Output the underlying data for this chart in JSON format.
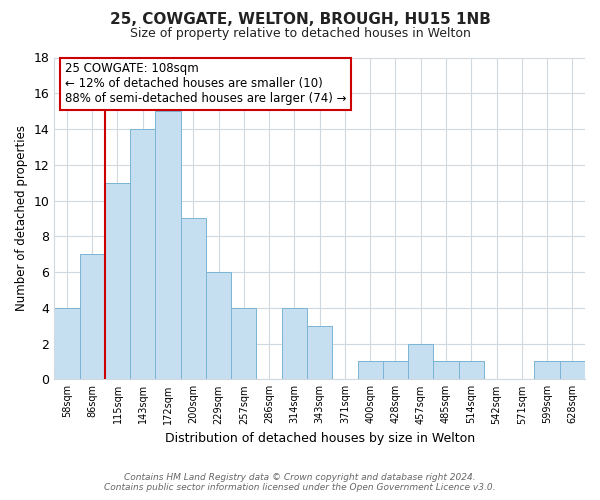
{
  "title": "25, COWGATE, WELTON, BROUGH, HU15 1NB",
  "subtitle": "Size of property relative to detached houses in Welton",
  "xlabel": "Distribution of detached houses by size in Welton",
  "ylabel": "Number of detached properties",
  "bar_labels": [
    "58sqm",
    "86sqm",
    "115sqm",
    "143sqm",
    "172sqm",
    "200sqm",
    "229sqm",
    "257sqm",
    "286sqm",
    "314sqm",
    "343sqm",
    "371sqm",
    "400sqm",
    "428sqm",
    "457sqm",
    "485sqm",
    "514sqm",
    "542sqm",
    "571sqm",
    "599sqm",
    "628sqm"
  ],
  "bar_values": [
    4,
    7,
    11,
    14,
    15,
    9,
    6,
    4,
    0,
    4,
    3,
    0,
    1,
    1,
    2,
    1,
    1,
    0,
    0,
    1,
    1
  ],
  "bar_color": "#c6dff0",
  "bar_edge_color": "#7ab4d4",
  "vline_color": "#cc0000",
  "annotation_title": "25 COWGATE: 108sqm",
  "annotation_line1": "← 12% of detached houses are smaller (10)",
  "annotation_line2": "88% of semi-detached houses are larger (74) →",
  "annotation_box_color": "#ffffff",
  "annotation_box_edge": "#cc0000",
  "ylim": [
    0,
    18
  ],
  "yticks": [
    0,
    2,
    4,
    6,
    8,
    10,
    12,
    14,
    16,
    18
  ],
  "footer1": "Contains HM Land Registry data © Crown copyright and database right 2024.",
  "footer2": "Contains public sector information licensed under the Open Government Licence v3.0.",
  "background_color": "#ffffff",
  "grid_color": "#d0d8e0"
}
